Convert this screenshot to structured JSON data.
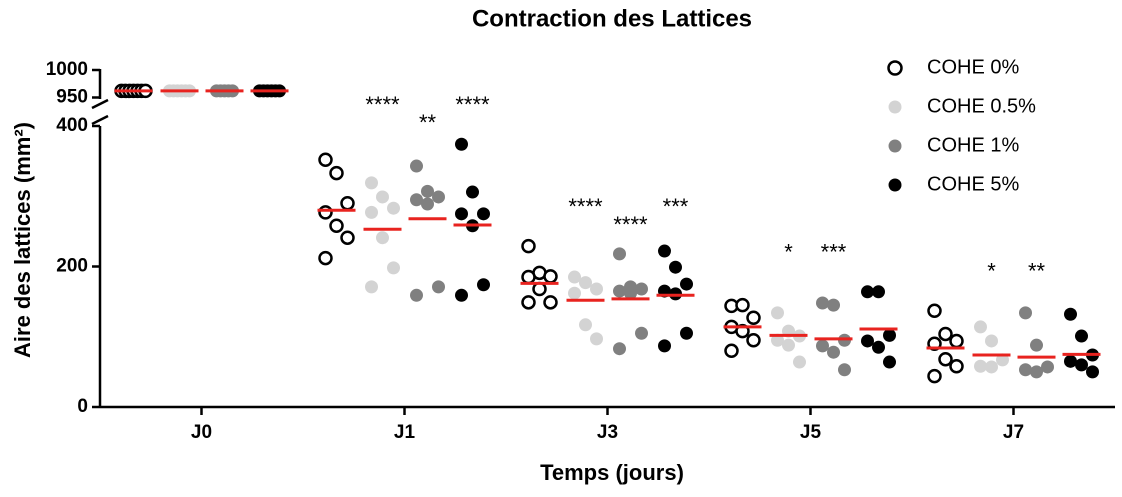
{
  "chart_data": {
    "type": "dot",
    "title": "Contraction des Lattices",
    "x_label": "Temps (jours)",
    "y_label": "Aire des lattices (mm²)",
    "categories": [
      "J0",
      "J1",
      "J3",
      "J5",
      "J7"
    ],
    "ylim": [
      0,
      1000
    ],
    "y_break": [
      400,
      940
    ],
    "yticks": [
      0,
      200,
      400,
      950,
      1000
    ],
    "mean_color": "#e8231f",
    "legend": "top-right",
    "series": [
      {
        "name": "COHE 0%",
        "color": "#000000",
        "marker": "open",
        "values": [
          [
            962,
            962,
            962,
            962,
            962,
            962,
            962
          ],
          [
            352,
            333,
            290,
            277,
            258,
            241,
            212
          ],
          [
            229,
            191,
            186,
            185,
            168,
            149,
            149
          ],
          [
            144,
            145,
            127,
            114,
            108,
            95,
            80
          ],
          [
            137,
            104,
            94,
            90,
            68,
            58,
            44
          ]
        ],
        "means": [
          962,
          280,
          176,
          114,
          84
        ],
        "significance": [
          null,
          null,
          null,
          null,
          null
        ]
      },
      {
        "name": "COHE 0.5%",
        "color": "#d3d3d3",
        "marker": "filled",
        "values": [
          [
            962,
            962,
            962,
            962,
            962,
            962
          ],
          [
            319,
            299,
            283,
            277,
            241,
            198,
            171
          ],
          [
            185,
            177,
            168,
            162,
            117,
            97
          ],
          [
            134,
            108,
            101,
            95,
            88,
            64
          ],
          [
            114,
            94,
            67,
            58,
            57
          ]
        ],
        "means": [
          962,
          253,
          152,
          102,
          74
        ],
        "significance": [
          null,
          "****",
          "****",
          "*",
          "*"
        ]
      },
      {
        "name": "COHE 1%",
        "color": "#808080",
        "marker": "filled",
        "values": [
          [
            962,
            962,
            962,
            962,
            962
          ],
          [
            343,
            307,
            299,
            295,
            289,
            171,
            159
          ],
          [
            218,
            171,
            168,
            165,
            162,
            105,
            83
          ],
          [
            148,
            145,
            95,
            87,
            78,
            53
          ],
          [
            134,
            88,
            57,
            53,
            50
          ]
        ],
        "means": [
          962,
          268,
          154,
          97,
          71
        ],
        "significance": [
          null,
          "**",
          "****",
          "***",
          "**"
        ]
      },
      {
        "name": "COHE 5%",
        "color": "#000000",
        "marker": "filled",
        "values": [
          [
            962,
            962,
            962,
            962,
            962,
            962
          ],
          [
            374,
            306,
            275,
            275,
            258,
            174,
            159
          ],
          [
            222,
            199,
            175,
            165,
            161,
            105,
            87
          ],
          [
            164,
            164,
            102,
            94,
            85,
            64
          ],
          [
            132,
            101,
            74,
            65,
            60,
            50
          ]
        ],
        "means": [
          962,
          259,
          159,
          111,
          75
        ],
        "significance": [
          null,
          "****",
          "***",
          null,
          null
        ]
      }
    ]
  }
}
